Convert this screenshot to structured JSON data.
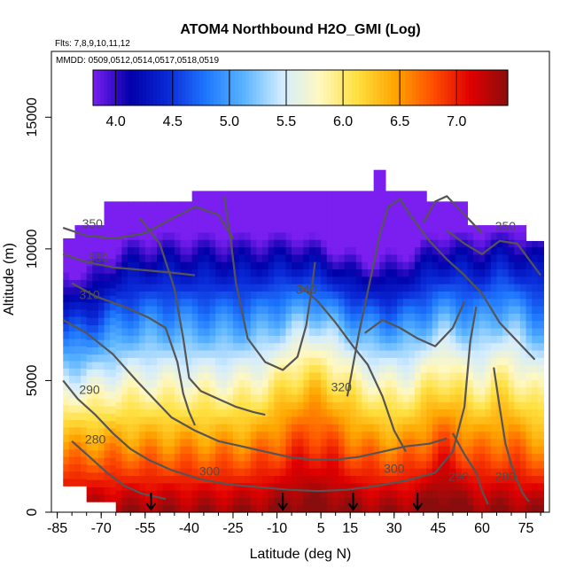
{
  "chart_data": {
    "type": "heatmap",
    "title": "ATOM4 Northbound H2O_GMI (Log)",
    "subtitle_lines": [
      "Flts: 7,8,9,10,11,12",
      "MMDD: 0509,0512,0514,0517,0518,0519"
    ],
    "xlabel": "Latitude (deg N)",
    "ylabel": "Altitude (m)",
    "xlim": [
      -87,
      83
    ],
    "ylim": [
      0,
      17500
    ],
    "x_ticks": [
      -85,
      -70,
      -55,
      -40,
      -25,
      -10,
      5,
      15,
      30,
      45,
      60,
      75
    ],
    "x_tick_labels": [
      "-85",
      "-70",
      "-55",
      "-40",
      "-25",
      "-10",
      "5",
      "15",
      "30",
      "45",
      "60",
      "75"
    ],
    "y_ticks": [
      0,
      5000,
      10000,
      15000
    ],
    "y_tick_labels": [
      "0",
      "5000",
      "10000",
      "15000"
    ],
    "colorbar": {
      "range": [
        3.8,
        7.45
      ],
      "ticks": [
        4.0,
        4.5,
        5.0,
        5.5,
        6.0,
        6.5,
        7.0
      ],
      "tick_labels": [
        "4.0",
        "4.5",
        "5.0",
        "5.5",
        "6.0",
        "6.5",
        "7.0"
      ],
      "colors": [
        "#7a1ff0",
        "#0000a8",
        "#0a2ad8",
        "#1e78ff",
        "#5ab4ff",
        "#d2ecff",
        "#fff8c0",
        "#ffe040",
        "#ffa500",
        "#ff5000",
        "#e00000",
        "#8a0d0d"
      ]
    },
    "profile_markers_lat": [
      -53,
      -8,
      16,
      38
    ],
    "contour_labels": [
      {
        "text": "350",
        "lat": -73,
        "alt": 10800
      },
      {
        "text": "330",
        "lat": -71,
        "alt": 9500
      },
      {
        "text": "310",
        "lat": -74,
        "alt": 8100
      },
      {
        "text": "340",
        "lat": 0,
        "alt": 8300
      },
      {
        "text": "320",
        "lat": 12,
        "alt": 4600
      },
      {
        "text": "290",
        "lat": -74,
        "alt": 4500
      },
      {
        "text": "280",
        "lat": -72,
        "alt": 2600
      },
      {
        "text": "300",
        "lat": -33,
        "alt": 1400
      },
      {
        "text": "300",
        "lat": 30,
        "alt": 1500
      },
      {
        "text": "290",
        "lat": 52,
        "alt": 1200
      },
      {
        "text": "280",
        "lat": 68,
        "alt": 1200
      },
      {
        "text": "350",
        "lat": 68,
        "alt": 10700
      }
    ]
  }
}
